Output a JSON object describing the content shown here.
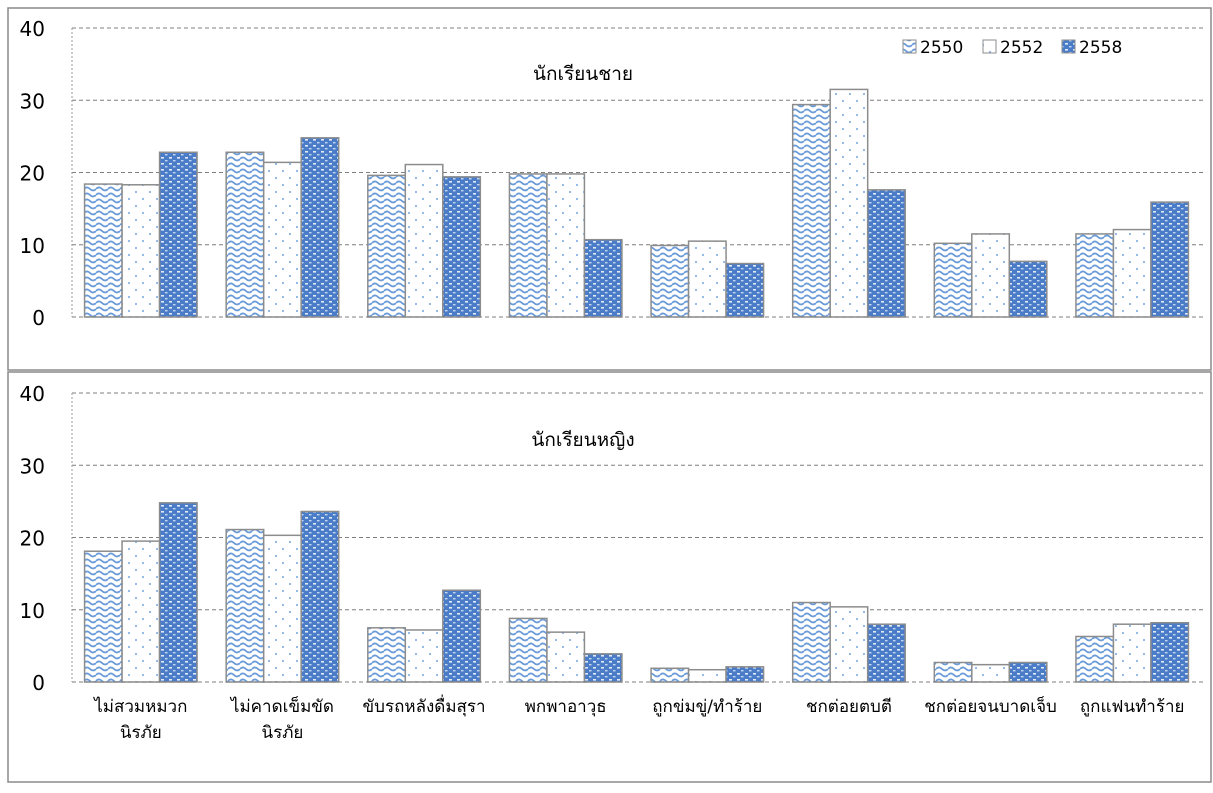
{
  "colors": {
    "series_2550": "#5b8fd6",
    "series_2552": "#8bb2e4",
    "series_2558": "#4a7cc8",
    "grid": "#7f7f7f",
    "bar_outline": "#8c8c8c"
  },
  "chart_data": [
    {
      "type": "bar",
      "title": "นักเรียนชาย",
      "xlabel": "",
      "ylabel": "",
      "ylim": [
        0,
        40
      ],
      "yticks": [
        "0",
        "10",
        "20",
        "30",
        "40"
      ],
      "grid": true,
      "legend": "top-right",
      "categories": [
        "ไม่สวมหมวกนิรภัย",
        "ไม่คาดเข็มขัดนิรภัย",
        "ขับรถหลังดื่มสุรา",
        "พกพาอาวุธ",
        "ถูกข่มขู่/ทำร้าย",
        "ชกต่อยตบตี",
        "ชกต่อยจนบาดเจ็บ",
        "ถูกแฟนทำร้าย"
      ],
      "series": [
        {
          "name": "2550",
          "values": [
            18.4,
            22.8,
            19.6,
            19.8,
            9.9,
            29.4,
            10.2,
            11.5
          ]
        },
        {
          "name": "2552",
          "values": [
            18.3,
            21.4,
            21.1,
            19.8,
            10.5,
            31.5,
            11.5,
            12.1
          ]
        },
        {
          "name": "2558",
          "values": [
            22.8,
            24.8,
            19.4,
            10.7,
            7.4,
            17.6,
            7.7,
            15.9
          ]
        }
      ]
    },
    {
      "type": "bar",
      "title": "นักเรียนหญิง",
      "xlabel": "",
      "ylabel": "",
      "ylim": [
        0,
        40
      ],
      "yticks": [
        "0",
        "10",
        "20",
        "30",
        "40"
      ],
      "grid": true,
      "categories": [
        "ไม่สวมหมวกนิรภัย",
        "ไม่คาดเข็มขัดนิรภัย",
        "ขับรถหลังดื่มสุรา",
        "พกพาอาวุธ",
        "ถูกข่มขู่/ทำร้าย",
        "ชกต่อยตบตี",
        "ชกต่อยจนบาดเจ็บ",
        "ถูกแฟนทำร้าย"
      ],
      "category_labels": [
        [
          "ไม่สวมหมวก",
          "นิรภัย"
        ],
        [
          "ไม่คาดเข็มขัด",
          "นิรภัย"
        ],
        [
          "ขับรถหลังดื่มสุรา"
        ],
        [
          "พกพาอาวุธ"
        ],
        [
          "ถูกข่มขู่/ทำร้าย"
        ],
        [
          "ชกต่อยตบตี"
        ],
        [
          "ชกต่อยจนบาดเจ็บ"
        ],
        [
          "ถูกแฟนทำร้าย"
        ]
      ],
      "series": [
        {
          "name": "2550",
          "values": [
            18.1,
            21.1,
            7.5,
            8.8,
            1.9,
            11.0,
            2.7,
            6.3
          ]
        },
        {
          "name": "2552",
          "values": [
            19.5,
            20.3,
            7.2,
            6.9,
            1.7,
            10.4,
            2.4,
            8.0
          ]
        },
        {
          "name": "2558",
          "values": [
            24.8,
            23.6,
            12.7,
            3.9,
            2.1,
            8.0,
            2.7,
            8.2
          ]
        }
      ]
    }
  ]
}
